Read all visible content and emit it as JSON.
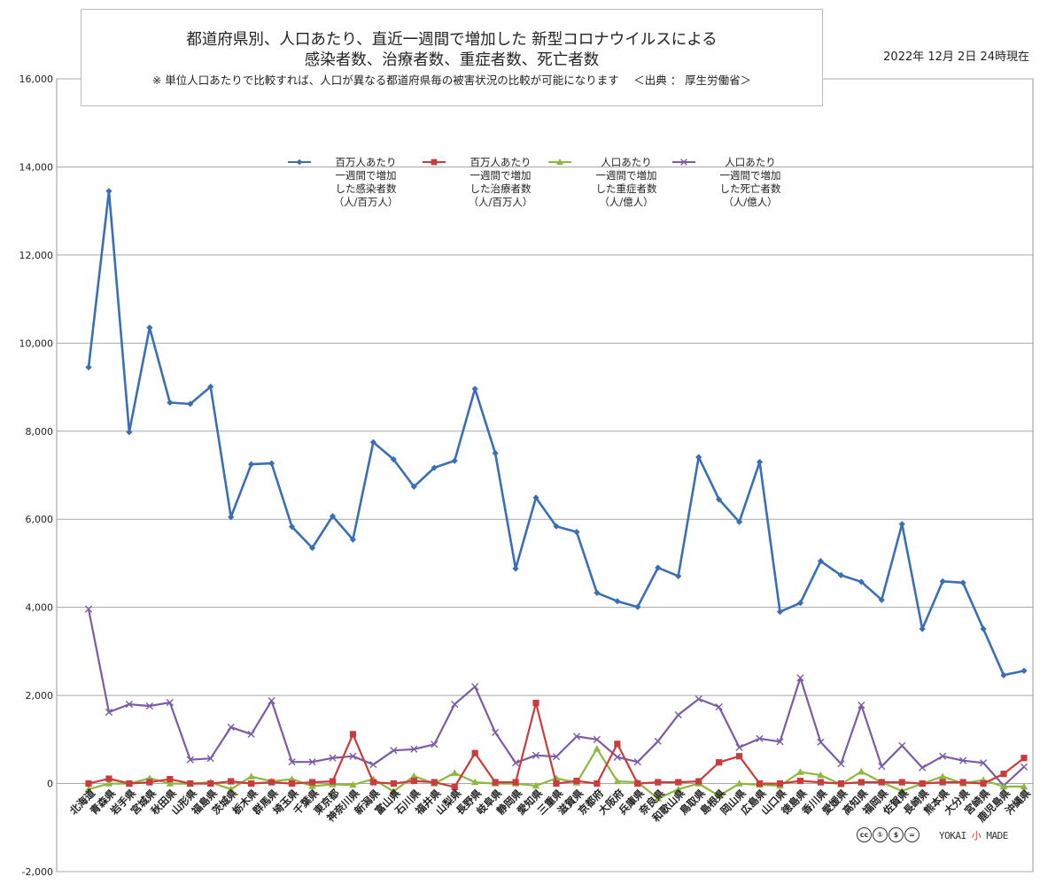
{
  "header": {
    "title_line1": "都道府県別、人口あたり、直近一週間で増加した 新型コロナウイルスによる",
    "title_line2": "感染者数、治療者数、重症者数、死亡者数",
    "note": "※ 単位人口あたりで比較すれば、人口が異なる都道府県毎の被害状況の比較が可能になります　 ＜出典 ： 厚生労働省＞",
    "date": "2022年 12月 2日 24時現在"
  },
  "logos": {
    "cc_text": [
      "cc",
      "①",
      "$",
      "="
    ],
    "brand_prefix": "YOKAI ",
    "brand_mark": "小",
    "brand_suffix": " MADE"
  },
  "chart_data": {
    "type": "line",
    "ylim": [
      -2000,
      16000
    ],
    "yticks": [
      -2000,
      0,
      2000,
      4000,
      6000,
      8000,
      10000,
      12000,
      14000,
      16000
    ],
    "ytick_labels": [
      "-2,000",
      "0",
      "2,000",
      "4,000",
      "6,000",
      "8,000",
      "10,000",
      "12,000",
      "14,000",
      "16,000"
    ],
    "grid": true,
    "legend_position": "top",
    "categories": [
      "北海道",
      "青森県",
      "岩手県",
      "宮城県",
      "秋田県",
      "山形県",
      "福島県",
      "茨城県",
      "栃木県",
      "群馬県",
      "埼玉県",
      "千葉県",
      "東京都",
      "神奈川県",
      "新潟県",
      "富山県",
      "石川県",
      "福井県",
      "山梨県",
      "長野県",
      "岐阜県",
      "静岡県",
      "愛知県",
      "三重県",
      "滋賀県",
      "京都府",
      "大阪府",
      "兵庫県",
      "奈良県",
      "和歌山県",
      "鳥取県",
      "島根県",
      "岡山県",
      "広島県",
      "山口県",
      "徳島県",
      "香川県",
      "愛媛県",
      "高知県",
      "福岡県",
      "佐賀県",
      "長崎県",
      "熊本県",
      "大分県",
      "宮崎県",
      "鹿児島県",
      "沖縄県"
    ],
    "series": [
      {
        "name": "百万人あたり\n一週間で増加\nした感染者数\n（人/百万人）",
        "color": "#3a6fb5",
        "marker": "diamond",
        "values": [
          9450,
          13450,
          7980,
          10350,
          8650,
          8620,
          9010,
          6050,
          7250,
          7270,
          5830,
          5350,
          6070,
          5540,
          7750,
          7360,
          6740,
          7170,
          7330,
          8960,
          7500,
          4880,
          6490,
          5840,
          5710,
          4330,
          4140,
          4010,
          4900,
          4710,
          7410,
          6450,
          5940,
          7300,
          3900,
          4100,
          5050,
          4730,
          4580,
          4170,
          5890,
          3510,
          4590,
          4560,
          3510,
          2460,
          2560
        ]
      },
      {
        "name": "百万人あたり\n一週間で増加\nした治療者数\n（人/百万人）",
        "color": "#cc3b3b",
        "marker": "square",
        "values": [
          0,
          110,
          0,
          30,
          100,
          0,
          0,
          50,
          0,
          30,
          0,
          30,
          50,
          1120,
          30,
          0,
          60,
          30,
          -80,
          690,
          30,
          30,
          1830,
          0,
          60,
          0,
          900,
          0,
          30,
          30,
          50,
          480,
          620,
          0,
          0,
          60,
          30,
          0,
          30,
          30,
          30,
          0,
          30,
          30,
          0,
          220,
          580
        ]
      },
      {
        "name": "人口あたり\n一週間で増加\nした重症者数\n（人/億人）",
        "color": "#8cb83e",
        "marker": "triangle",
        "values": [
          -130,
          0,
          0,
          120,
          0,
          0,
          30,
          -130,
          160,
          50,
          100,
          -60,
          -20,
          -30,
          100,
          -180,
          170,
          0,
          240,
          30,
          0,
          0,
          -50,
          120,
          20,
          790,
          50,
          30,
          -340,
          -130,
          0,
          -280,
          0,
          -30,
          -50,
          260,
          190,
          -20,
          270,
          30,
          -170,
          0,
          160,
          0,
          80,
          -70,
          -70
        ]
      },
      {
        "name": "人口あたり\n一週間で増加\nした死亡者数\n（人/億人）",
        "color": "#7c5ba6",
        "marker": "x",
        "values": [
          3960,
          1620,
          1800,
          1760,
          1840,
          540,
          570,
          1280,
          1120,
          1880,
          490,
          490,
          580,
          620,
          430,
          750,
          780,
          890,
          1800,
          2200,
          1160,
          470,
          640,
          610,
          1070,
          1000,
          600,
          490,
          960,
          1560,
          1920,
          1740,
          820,
          1020,
          950,
          2400,
          940,
          450,
          1780,
          390,
          860,
          360,
          620,
          520,
          470,
          -50,
          380
        ]
      }
    ]
  }
}
